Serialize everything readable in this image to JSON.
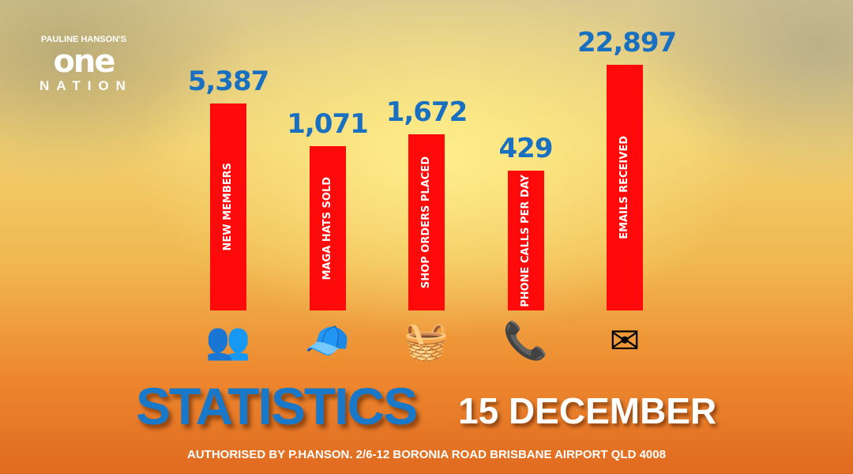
{
  "logo": {
    "line1": "PAULINE HANSON'S",
    "line2": "one",
    "line3": "NATION"
  },
  "chart_data": {
    "type": "bar",
    "categories": [
      "NEW  MEMBERS",
      "MAGA HATS SOLD",
      "SHOP ORDERS PLACED",
      "PHONE CALLS PER DAY",
      "EMAILS RECEIVED"
    ],
    "values": [
      5387,
      1071,
      1672,
      429,
      22897
    ],
    "value_labels": [
      "5,387",
      "1,071",
      "1,672",
      "429",
      "22,897"
    ],
    "icons": [
      "members-icon",
      "maga-hat-icon",
      "order-basket-icon",
      "phone-icon",
      "email-icon"
    ],
    "bar_color": "#ff0a0a",
    "label_color": "#1a70c0",
    "scale": "log"
  },
  "title": "STATISTICS",
  "date": "15 DECEMBER",
  "footer": "AUTHORISED BY P.HANSON. 2/6-12 BORONIA ROAD BRISBANE AIRPORT QLD 4008"
}
